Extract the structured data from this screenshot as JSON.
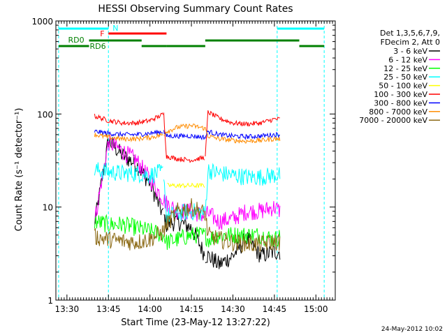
{
  "footer_timestamp": "24-May-2012 10:02",
  "chart_data": {
    "type": "line",
    "title": "HESSI Observing Summary Count Rates",
    "xlabel": "Start Time (23-May-12 13:27:22)",
    "ylabel": "Count Rate (s⁻¹ detector⁻¹)",
    "y_scale": "log",
    "ylim": [
      1,
      1000
    ],
    "y_ticks": [
      1,
      10,
      100,
      1000
    ],
    "y_tick_labels": [
      "1",
      "10",
      "100",
      "1000"
    ],
    "xlim": [
      "13:26",
      "15:07"
    ],
    "x_ticks": [
      "13:30",
      "13:45",
      "14:00",
      "14:15",
      "14:30",
      "14:45",
      "15:00"
    ],
    "grid": false,
    "legend_position": "right",
    "legend_header": [
      "Det 1,3,5,6,7,9,",
      "FDecim 2, Att 0"
    ],
    "night_bars": {
      "color": "#00ffff",
      "label": "N",
      "segments": [
        [
          "13:27",
          "13:45"
        ],
        [
          "14:46",
          "15:03"
        ]
      ],
      "markers": [
        "13:27",
        "13:45",
        "14:46",
        "15:03"
      ]
    },
    "flare_bar": {
      "color": "#ff0000",
      "label": "F",
      "segments": [
        [
          "13:45",
          "14:06"
        ]
      ]
    },
    "saa_bars": {
      "color": "#008000",
      "labels": [
        "RD0",
        "RD6"
      ],
      "upper": [
        [
          "13:38",
          "13:57"
        ],
        [
          "14:20",
          "14:54"
        ]
      ],
      "lower": [
        [
          "13:27",
          "13:38"
        ],
        [
          "13:57",
          "14:06"
        ],
        [
          "14:06",
          "14:20"
        ],
        [
          "14:54",
          "15:03"
        ]
      ]
    },
    "data_start": "13:40",
    "data_end": "14:47",
    "discontinuities": [
      "14:05",
      "14:20"
    ],
    "series": [
      {
        "name": "3 - 6 keV",
        "color": "#000000",
        "x": [
          "13:40",
          "13:45",
          "13:50",
          "13:55",
          "14:00",
          "14:05",
          "14:06",
          "14:10",
          "14:15",
          "14:20",
          "14:21",
          "14:25",
          "14:30",
          "14:35",
          "14:40",
          "14:45",
          "14:47"
        ],
        "y": [
          6.5,
          52,
          36,
          29,
          18,
          8,
          6.5,
          7,
          6,
          3,
          3,
          2.4,
          3,
          4.6,
          3,
          3.3,
          3.3
        ]
      },
      {
        "name": "6 - 12 keV",
        "color": "#ff00ff",
        "x": [
          "13:40",
          "13:45",
          "13:50",
          "13:55",
          "14:00",
          "14:05",
          "14:06",
          "14:10",
          "14:15",
          "14:20",
          "14:21",
          "14:25",
          "14:30",
          "14:35",
          "14:40",
          "14:45",
          "14:47"
        ],
        "y": [
          7,
          50,
          40,
          32,
          20,
          12,
          11,
          9,
          9,
          8,
          8.5,
          7,
          7.5,
          9,
          9,
          10,
          9
        ]
      },
      {
        "name": "12 - 25 keV",
        "color": "#00ff00",
        "x": [
          "13:40",
          "13:45",
          "13:50",
          "13:55",
          "14:00",
          "14:05",
          "14:06",
          "14:10",
          "14:15",
          "14:20",
          "14:21",
          "14:25",
          "14:30",
          "14:35",
          "14:40",
          "14:45",
          "14:47"
        ],
        "y": [
          7,
          6.5,
          6.5,
          6,
          5.5,
          5,
          4.2,
          4.5,
          5,
          5,
          4.5,
          5,
          5,
          5,
          5,
          4.5,
          4.8
        ]
      },
      {
        "name": "25 - 50 keV",
        "color": "#00ffff",
        "x": [
          "13:40",
          "13:45",
          "13:50",
          "13:55",
          "14:00",
          "14:05",
          "14:06",
          "14:10",
          "14:15",
          "14:20",
          "14:21",
          "14:25",
          "14:30",
          "14:35",
          "14:40",
          "14:45",
          "14:47"
        ],
        "y": [
          25,
          24,
          23,
          23,
          22,
          24,
          8,
          8.5,
          9,
          8.5,
          25,
          23,
          22,
          21,
          21,
          22,
          22
        ]
      },
      {
        "name": "50 - 100 keV",
        "color": "#ffff00",
        "x": [
          "13:40",
          "13:45",
          "13:50",
          "13:55",
          "14:00",
          "14:05",
          "14:06",
          "14:10",
          "14:15",
          "14:20",
          "14:21",
          "14:25",
          "14:30",
          "14:35",
          "14:40",
          "14:45",
          "14:47"
        ],
        "y": [
          null,
          null,
          null,
          null,
          null,
          null,
          17,
          17,
          17,
          17,
          null,
          null,
          null,
          null,
          null,
          null,
          null
        ]
      },
      {
        "name": "100 - 300 keV",
        "color": "#ff0000",
        "x": [
          "13:40",
          "13:45",
          "13:50",
          "13:55",
          "14:00",
          "14:05",
          "14:06",
          "14:10",
          "14:15",
          "14:20",
          "14:21",
          "14:25",
          "14:30",
          "14:35",
          "14:40",
          "14:45",
          "14:47"
        ],
        "y": [
          95,
          85,
          80,
          80,
          85,
          100,
          35,
          33,
          32,
          34,
          105,
          90,
          80,
          78,
          80,
          88,
          88
        ]
      },
      {
        "name": "300 - 800 keV",
        "color": "#0000ff",
        "x": [
          "13:40",
          "13:45",
          "13:50",
          "13:55",
          "14:00",
          "14:05",
          "14:06",
          "14:10",
          "14:15",
          "14:20",
          "14:21",
          "14:25",
          "14:30",
          "14:35",
          "14:40",
          "14:45",
          "14:47"
        ],
        "y": [
          65,
          62,
          60,
          60,
          62,
          65,
          58,
          58,
          58,
          56,
          65,
          60,
          58,
          57,
          58,
          60,
          60
        ]
      },
      {
        "name": "800 - 7000 keV",
        "color": "#ff8c00",
        "x": [
          "13:40",
          "13:45",
          "13:50",
          "13:55",
          "14:00",
          "14:05",
          "14:06",
          "14:10",
          "14:15",
          "14:20",
          "14:21",
          "14:25",
          "14:30",
          "14:35",
          "14:40",
          "14:45",
          "14:47"
        ],
        "y": [
          60,
          56,
          54,
          54,
          56,
          60,
          65,
          72,
          75,
          70,
          58,
          54,
          52,
          51,
          52,
          54,
          54
        ]
      },
      {
        "name": "7000 - 20000 keV",
        "color": "#8b6914",
        "x": [
          "13:40",
          "13:45",
          "13:50",
          "13:55",
          "14:00",
          "14:05",
          "14:06",
          "14:10",
          "14:15",
          "14:20",
          "14:21",
          "14:25",
          "14:30",
          "14:35",
          "14:40",
          "14:45",
          "14:47"
        ],
        "y": [
          4.8,
          4.5,
          4.3,
          4.2,
          4.5,
          5.5,
          6.5,
          9,
          10,
          8.5,
          5,
          4.5,
          4.2,
          4,
          4,
          4.2,
          4.2
        ]
      }
    ]
  }
}
